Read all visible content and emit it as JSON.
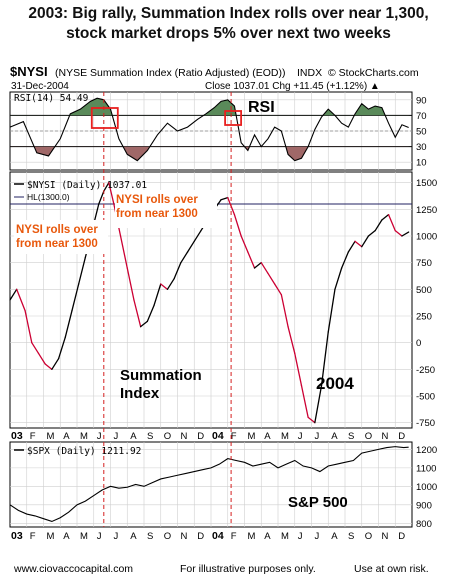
{
  "headline": {
    "line1": "2003: Big rally, Summation Index rolls over near 1,300,",
    "line2": "stock market drops 5% over next two weeks"
  },
  "header": {
    "symbol": "$NYSI",
    "description": "(NYSE Summation Index (Ratio Adjusted) (EOD))",
    "exchange": "INDX",
    "source": "© StockCharts.com",
    "date": "31-Dec-2004",
    "quote": "Close 1037.01  Chg +11.45 (+1.12%) ▲"
  },
  "colors": {
    "rsi_high_fill": "#5a8a5a",
    "rsi_low_fill": "#a06868",
    "nysi_up": "#000000",
    "nysi_down": "#cc0033",
    "annotation": "#e8580c",
    "marker_box": "#e8201f",
    "vline": "#d42020"
  },
  "annotations": {
    "rsi_label": "RSI",
    "rolls_over_1": "NYSI rolls over from near 1300",
    "rolls_over_2": "NYSI rolls over from near 1300",
    "summation_label": "Summation Index",
    "year_label": "2004",
    "sp_label": "S&P 500"
  },
  "footer": {
    "website": "www.ciovaccocapital.com",
    "disclaimer": "For illustrative purposes only.",
    "risk": "Use at own risk."
  },
  "chart_data": [
    {
      "type": "area",
      "legend": "RSI(14) 54.49",
      "ylim": [
        0,
        100
      ],
      "yticks": [
        10,
        30,
        50,
        70,
        90
      ],
      "reference_lines": [
        30,
        70
      ],
      "x": [
        0,
        0.8,
        1.6,
        2.3,
        3.0,
        3.6,
        4.2,
        4.8,
        5.2,
        5.6,
        6.0,
        6.5,
        7.0,
        7.6,
        8.2,
        8.8,
        9.4,
        10.0,
        10.6,
        11.2,
        11.7,
        12.2,
        12.6,
        13.0,
        13.4,
        13.8,
        14.2,
        14.6,
        15.0,
        15.4,
        15.8,
        16.2,
        16.6,
        17.0,
        17.4,
        17.8,
        18.2,
        18.6,
        19.0,
        19.4,
        19.8,
        20.2,
        20.6,
        21.0,
        21.4,
        21.8,
        22.2,
        22.6,
        23.0,
        23.4,
        23.8
      ],
      "values": [
        55,
        62,
        22,
        18,
        40,
        72,
        78,
        88,
        92,
        90,
        78,
        40,
        20,
        12,
        25,
        45,
        60,
        50,
        55,
        65,
        72,
        80,
        88,
        90,
        82,
        35,
        25,
        45,
        30,
        40,
        55,
        50,
        20,
        12,
        15,
        30,
        52,
        68,
        78,
        70,
        60,
        55,
        72,
        85,
        78,
        82,
        80,
        60,
        42,
        58,
        54.49
      ]
    },
    {
      "type": "line",
      "legend": [
        "$NYSI (Daily) 1037.01",
        "HL(1300.0)"
      ],
      "reference_line": 1300,
      "ylim": [
        -800,
        1600
      ],
      "yticks": [
        -750,
        -500,
        -250,
        0,
        250,
        500,
        750,
        1000,
        1250,
        1500
      ],
      "x": [
        0,
        0.4,
        0.9,
        1.3,
        1.7,
        2.1,
        2.5,
        2.9,
        3.3,
        3.7,
        4.1,
        4.5,
        4.9,
        5.3,
        5.6,
        5.9,
        6.2,
        6.6,
        7.0,
        7.4,
        7.8,
        8.2,
        8.6,
        9.0,
        9.4,
        9.8,
        10.2,
        10.6,
        11.0,
        11.4,
        11.8,
        12.2,
        12.6,
        13.0,
        13.4,
        13.8,
        14.2,
        14.6,
        15.0,
        15.4,
        15.8,
        16.2,
        16.6,
        17.0,
        17.4,
        17.8,
        18.2,
        18.6,
        19.0,
        19.4,
        19.8,
        20.2,
        20.6,
        21.0,
        21.4,
        21.8,
        22.2,
        22.6,
        23.0,
        23.4,
        23.8
      ],
      "values": [
        400,
        500,
        300,
        0,
        -100,
        -200,
        -250,
        -150,
        50,
        300,
        550,
        800,
        1050,
        1300,
        1420,
        1500,
        1300,
        1000,
        700,
        400,
        150,
        200,
        350,
        550,
        500,
        600,
        750,
        850,
        950,
        1050,
        1150,
        1250,
        1340,
        1360,
        1200,
        1000,
        850,
        700,
        750,
        650,
        550,
        450,
        150,
        -100,
        -400,
        -700,
        -750,
        -400,
        100,
        500,
        700,
        850,
        950,
        900,
        1000,
        1050,
        1150,
        1200,
        1050,
        1000,
        1037.01
      ]
    },
    {
      "type": "line",
      "legend": "$SPX (Daily) 1211.92",
      "ylim": [
        780,
        1240
      ],
      "yticks": [
        800,
        900,
        1000,
        1100,
        1200
      ],
      "x": [
        0,
        0.5,
        1.0,
        1.5,
        2.0,
        2.5,
        3.0,
        3.5,
        4.0,
        4.5,
        5.0,
        5.5,
        6.0,
        6.5,
        7.0,
        7.5,
        8.0,
        8.5,
        9.0,
        9.5,
        10.0,
        10.5,
        11.0,
        11.5,
        12.0,
        12.5,
        13.0,
        13.5,
        14.0,
        14.5,
        15.0,
        15.5,
        16.0,
        16.5,
        17.0,
        17.5,
        18.0,
        18.5,
        19.0,
        19.5,
        20.0,
        20.5,
        21.0,
        21.5,
        22.0,
        22.5,
        23.0,
        23.5,
        23.8
      ],
      "values": [
        900,
        870,
        850,
        840,
        825,
        810,
        830,
        860,
        900,
        920,
        950,
        980,
        1000,
        990,
        995,
        1010,
        1000,
        1020,
        1040,
        1050,
        1060,
        1070,
        1080,
        1090,
        1100,
        1120,
        1150,
        1140,
        1130,
        1110,
        1120,
        1130,
        1100,
        1120,
        1140,
        1110,
        1100,
        1080,
        1110,
        1120,
        1130,
        1140,
        1180,
        1190,
        1200,
        1210,
        1215,
        1210,
        1211.92
      ]
    }
  ],
  "x_axis": {
    "labels": [
      "03",
      "F",
      "M",
      "A",
      "M",
      "J",
      "J",
      "A",
      "S",
      "O",
      "N",
      "D",
      "04",
      "F",
      "M",
      "A",
      "M",
      "J",
      "J",
      "A",
      "S",
      "O",
      "N",
      "D"
    ]
  }
}
